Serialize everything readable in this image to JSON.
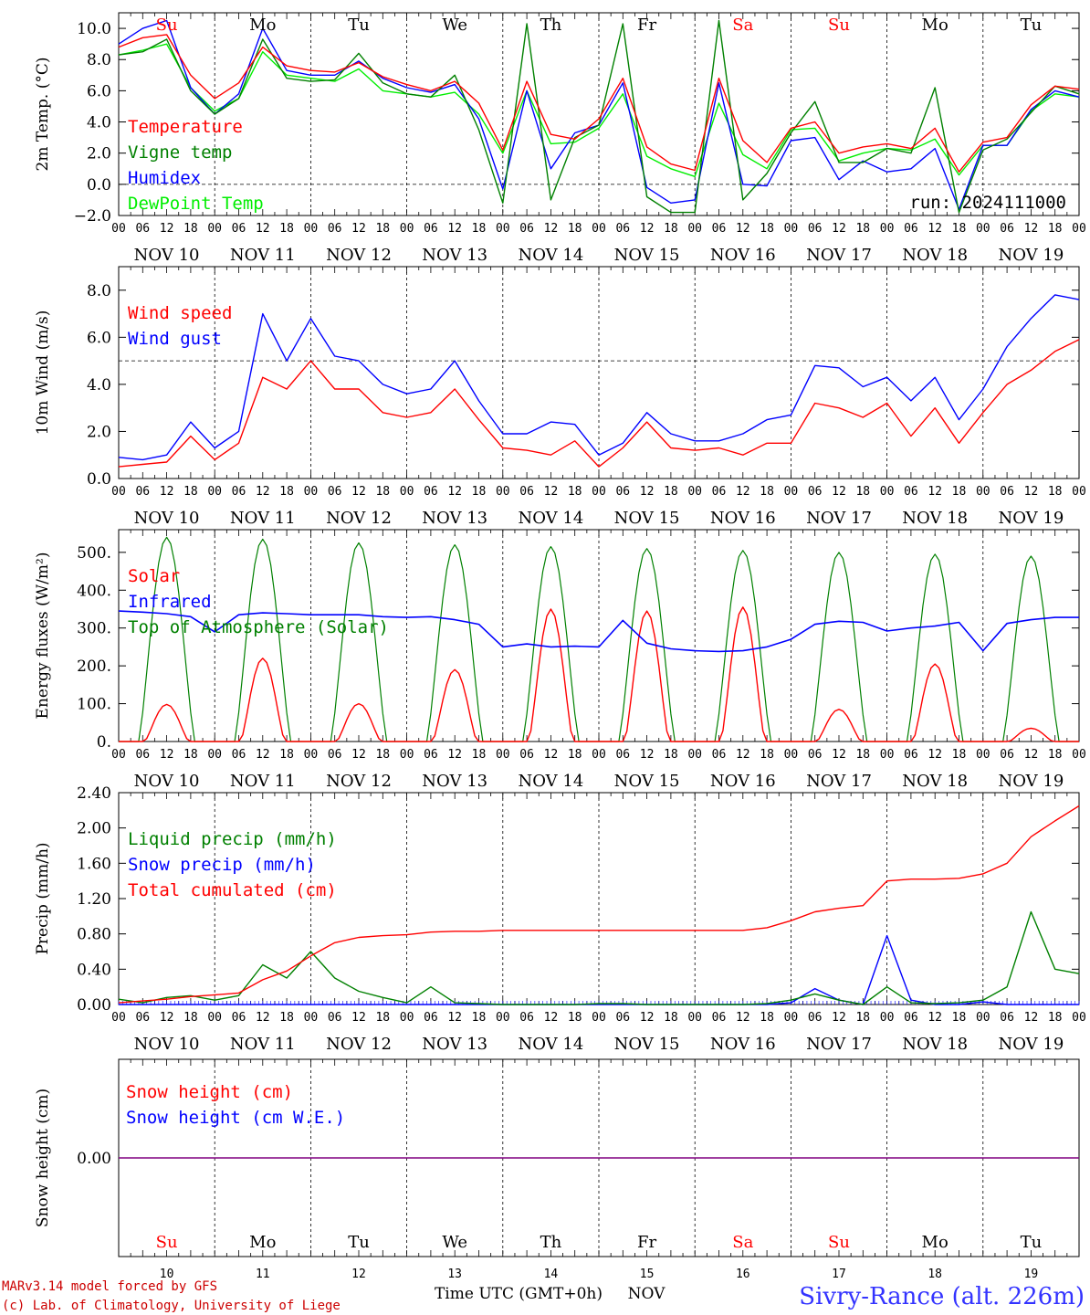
{
  "chart_data": [
    {
      "type": "line",
      "ylabel": "2m Temp. (°C)",
      "ylim": [
        -2,
        11
      ],
      "yticks": [
        "−2.0",
        "0.0",
        "2.0",
        "4.0",
        "6.0",
        "8.0",
        "10.0"
      ],
      "ytick_values": [
        -2,
        0,
        2,
        4,
        6,
        8,
        10
      ],
      "ref_line": 0,
      "run_label": "run: 2024111000",
      "legend": [
        {
          "name": "Temperature",
          "color": "#ff0000"
        },
        {
          "name": "Vigne temp",
          "color": "#008000"
        },
        {
          "name": "Humidex",
          "color": "#0000ff"
        },
        {
          "name": "DewPoint Temp",
          "color": "#00ee00"
        }
      ],
      "x_hours": [
        0,
        6,
        12,
        18,
        24,
        30,
        36,
        42,
        48,
        54,
        60,
        66,
        72,
        78,
        84,
        90,
        96,
        102,
        108,
        114,
        120,
        126,
        132,
        138,
        144,
        150,
        156,
        162,
        168,
        174,
        180,
        186,
        192,
        198,
        204,
        210,
        216,
        222,
        228,
        234,
        240
      ],
      "series": [
        {
          "name": "Temperature",
          "color": "#ff0000",
          "values": [
            8.8,
            9.4,
            9.6,
            7.0,
            5.5,
            6.5,
            8.8,
            7.6,
            7.3,
            7.2,
            7.8,
            6.9,
            6.4,
            6.0,
            6.6,
            5.2,
            2.2,
            6.6,
            3.2,
            2.9,
            4.2,
            6.8,
            2.4,
            1.3,
            0.9,
            6.8,
            2.8,
            1.4,
            3.6,
            4.0,
            2.0,
            2.4,
            2.6,
            2.3,
            3.6,
            0.8,
            2.7,
            3.0,
            5.1,
            6.3,
            6.1
          ]
        },
        {
          "name": "Vigne temp",
          "color": "#008000",
          "values": [
            8.3,
            8.5,
            9.3,
            6.0,
            4.5,
            5.5,
            9.3,
            6.8,
            6.6,
            6.7,
            8.4,
            6.5,
            5.8,
            5.6,
            7.0,
            3.5,
            -1.2,
            10.3,
            -1.0,
            3.0,
            3.8,
            10.3,
            -0.8,
            -1.8,
            -1.8,
            10.5,
            -1.0,
            0.7,
            3.3,
            5.3,
            1.4,
            1.4,
            2.3,
            2.0,
            6.2,
            -1.8,
            2.2,
            2.9,
            4.6,
            6.3,
            5.8
          ]
        },
        {
          "name": "Humidex",
          "color": "#0000ff",
          "values": [
            9.0,
            10.0,
            10.5,
            6.2,
            4.5,
            5.8,
            10.0,
            7.3,
            7.0,
            7.0,
            7.9,
            6.8,
            6.2,
            5.9,
            6.4,
            4.2,
            -0.3,
            6.0,
            1.0,
            3.3,
            3.8,
            6.5,
            -0.2,
            -1.2,
            -1.0,
            6.5,
            0.0,
            -0.1,
            2.8,
            3.0,
            0.3,
            1.5,
            0.8,
            1.0,
            2.3,
            -1.6,
            2.5,
            2.5,
            4.8,
            6.0,
            5.6
          ]
        },
        {
          "name": "DewPoint Temp",
          "color": "#00ee00",
          "values": [
            8.3,
            8.6,
            9.0,
            6.2,
            4.7,
            5.5,
            8.5,
            7.0,
            6.8,
            6.6,
            7.4,
            6.0,
            5.8,
            5.6,
            5.9,
            4.5,
            2.0,
            6.0,
            2.6,
            2.7,
            3.6,
            5.8,
            1.8,
            1.0,
            0.5,
            5.2,
            1.9,
            1.0,
            3.5,
            3.6,
            1.5,
            2.0,
            2.3,
            2.2,
            2.9,
            0.6,
            2.5,
            2.5,
            4.7,
            5.8,
            5.6
          ]
        }
      ]
    },
    {
      "type": "line",
      "ylabel": "10m Wind (m/s)",
      "ylim": [
        0,
        9
      ],
      "yticks": [
        "0.0",
        "2.0",
        "4.0",
        "6.0",
        "8.0"
      ],
      "ytick_values": [
        0,
        2,
        4,
        6,
        8
      ],
      "ref_line": 5,
      "legend": [
        {
          "name": "Wind speed",
          "color": "#ff0000"
        },
        {
          "name": "Wind gust",
          "color": "#0000ff"
        }
      ],
      "x_hours": [
        0,
        6,
        12,
        18,
        24,
        30,
        36,
        42,
        48,
        54,
        60,
        66,
        72,
        78,
        84,
        90,
        96,
        102,
        108,
        114,
        120,
        126,
        132,
        138,
        144,
        150,
        156,
        162,
        168,
        174,
        180,
        186,
        192,
        198,
        204,
        210,
        216,
        222,
        228,
        234,
        240
      ],
      "series": [
        {
          "name": "Wind speed",
          "color": "#ff0000",
          "values": [
            0.5,
            0.6,
            0.7,
            1.8,
            0.8,
            1.5,
            4.3,
            3.8,
            5.0,
            3.8,
            3.8,
            2.8,
            2.6,
            2.8,
            3.8,
            2.5,
            1.3,
            1.2,
            1.0,
            1.6,
            0.5,
            1.3,
            2.4,
            1.3,
            1.2,
            1.3,
            1.0,
            1.5,
            1.5,
            3.2,
            3.0,
            2.6,
            3.2,
            1.8,
            3.0,
            1.5,
            2.8,
            4.0,
            4.6,
            5.4,
            5.9
          ]
        },
        {
          "name": "Wind gust",
          "color": "#0000ff",
          "values": [
            0.9,
            0.8,
            1.0,
            2.4,
            1.3,
            2.0,
            7.0,
            5.0,
            6.8,
            5.2,
            5.0,
            4.0,
            3.6,
            3.8,
            5.0,
            3.3,
            1.9,
            1.9,
            2.4,
            2.3,
            1.0,
            1.5,
            2.8,
            1.9,
            1.6,
            1.6,
            1.9,
            2.5,
            2.7,
            4.8,
            4.7,
            3.9,
            4.3,
            3.3,
            4.3,
            2.5,
            3.8,
            5.6,
            6.8,
            7.8,
            7.6
          ]
        }
      ]
    },
    {
      "type": "line",
      "ylabel": "Energy fluxes (W/m²)",
      "ylim": [
        0,
        560
      ],
      "yticks": [
        "0.",
        "100.",
        "200.",
        "300.",
        "400.",
        "500."
      ],
      "ytick_values": [
        0,
        100,
        200,
        300,
        400,
        500
      ],
      "legend": [
        {
          "name": "Solar",
          "color": "#ff0000"
        },
        {
          "name": "Infrared",
          "color": "#0000ff"
        },
        {
          "name": "Top of Atmosphere (Solar)",
          "color": "#008000"
        }
      ],
      "infrared": {
        "x_hours": [
          0,
          6,
          12,
          18,
          24,
          30,
          36,
          42,
          48,
          54,
          60,
          66,
          72,
          78,
          84,
          90,
          96,
          102,
          108,
          114,
          120,
          126,
          132,
          138,
          144,
          150,
          156,
          162,
          168,
          174,
          180,
          186,
          192,
          198,
          204,
          210,
          216,
          222,
          228,
          234,
          240
        ],
        "values": [
          345,
          342,
          338,
          330,
          290,
          335,
          340,
          338,
          335,
          335,
          335,
          330,
          328,
          330,
          322,
          310,
          250,
          258,
          250,
          252,
          250,
          320,
          260,
          245,
          240,
          238,
          240,
          250,
          270,
          310,
          318,
          315,
          292,
          300,
          305,
          315,
          240,
          312,
          322,
          328,
          328
        ]
      },
      "solar_peaks": [
        98,
        220,
        100,
        190,
        350,
        345,
        355,
        85,
        205,
        35
      ],
      "toa_peaks": [
        540,
        535,
        525,
        520,
        515,
        510,
        505,
        500,
        495,
        490
      ]
    },
    {
      "type": "line",
      "ylabel": "Precip (mm/h)",
      "ylim": [
        0,
        2.4
      ],
      "yticks": [
        "0.00",
        "0.40",
        "0.80",
        "1.20",
        "1.60",
        "2.00",
        "2.40"
      ],
      "ytick_values": [
        0,
        0.4,
        0.8,
        1.2,
        1.6,
        2.0,
        2.4
      ],
      "legend": [
        {
          "name": "Liquid precip (mm/h)",
          "color": "#008000"
        },
        {
          "name": "Snow precip (mm/h)",
          "color": "#0000ff"
        },
        {
          "name": "Total cumulated (cm)",
          "color": "#ff0000"
        }
      ],
      "x_hours": [
        0,
        6,
        12,
        18,
        24,
        30,
        36,
        42,
        48,
        54,
        60,
        66,
        72,
        78,
        84,
        90,
        96,
        102,
        108,
        114,
        120,
        126,
        132,
        138,
        144,
        150,
        156,
        162,
        168,
        174,
        180,
        186,
        192,
        198,
        204,
        210,
        216,
        222,
        228,
        234,
        240
      ],
      "series": [
        {
          "name": "Total cumulated (cm)",
          "color": "#ff0000",
          "values": [
            0.02,
            0.04,
            0.06,
            0.09,
            0.11,
            0.13,
            0.28,
            0.38,
            0.55,
            0.7,
            0.76,
            0.78,
            0.79,
            0.82,
            0.83,
            0.83,
            0.84,
            0.84,
            0.84,
            0.84,
            0.84,
            0.84,
            0.84,
            0.84,
            0.84,
            0.84,
            0.84,
            0.87,
            0.95,
            1.05,
            1.09,
            1.12,
            1.4,
            1.42,
            1.42,
            1.43,
            1.48,
            1.6,
            1.9,
            2.08,
            2.25
          ]
        },
        {
          "name": "Liquid precip (mm/h)",
          "color": "#008000",
          "values": [
            0.06,
            0.02,
            0.08,
            0.1,
            0.05,
            0.1,
            0.45,
            0.3,
            0.6,
            0.3,
            0.15,
            0.08,
            0.02,
            0.2,
            0.02,
            0.01,
            0.0,
            0.0,
            0.0,
            0.0,
            0.01,
            0.01,
            0.0,
            0.0,
            0.0,
            0.0,
            0.0,
            0.01,
            0.05,
            0.12,
            0.05,
            0.0,
            0.2,
            0.02,
            0.01,
            0.02,
            0.05,
            0.2,
            1.05,
            0.4,
            0.35
          ]
        },
        {
          "name": "Snow precip (mm/h)",
          "color": "#0000ff",
          "values": [
            0,
            0,
            0,
            0,
            0,
            0,
            0,
            0,
            0,
            0,
            0,
            0,
            0,
            0,
            0,
            0,
            0,
            0,
            0,
            0,
            0,
            0,
            0,
            0,
            0,
            0,
            0,
            0,
            0.02,
            0.18,
            0.05,
            0,
            0.78,
            0.05,
            0,
            0,
            0.03,
            0,
            0,
            0,
            0
          ]
        }
      ]
    },
    {
      "type": "line",
      "ylabel": "Snow height (cm)",
      "ylim": [
        -1,
        1
      ],
      "yticks": [
        "0.00"
      ],
      "ytick_values": [
        0
      ],
      "legend": [
        {
          "name": "Snow height (cm)",
          "color": "#ff0000"
        },
        {
          "name": "Snow height (cm W.E.)",
          "color": "#0000ff"
        }
      ],
      "series": [
        {
          "name": "Snow height (cm)",
          "color": "#800080",
          "values": [
            0,
            0
          ]
        }
      ]
    }
  ],
  "weekdays": [
    {
      "label": "Su",
      "color": "#ff0000"
    },
    {
      "label": "Mo",
      "color": "#000000"
    },
    {
      "label": "Tu",
      "color": "#000000"
    },
    {
      "label": "We",
      "color": "#000000"
    },
    {
      "label": "Th",
      "color": "#000000"
    },
    {
      "label": "Fr",
      "color": "#000000"
    },
    {
      "label": "Sa",
      "color": "#ff0000"
    },
    {
      "label": "Su",
      "color": "#ff0000"
    },
    {
      "label": "Mo",
      "color": "#000000"
    },
    {
      "label": "Tu",
      "color": "#000000"
    }
  ],
  "dates": [
    "NOV 10",
    "NOV 11",
    "NOV 12",
    "NOV 13",
    "NOV 14",
    "NOV 15",
    "NOV 16",
    "NOV 17",
    "NOV 18",
    "NOV 19"
  ],
  "day_numbers": [
    "10",
    "11",
    "12",
    "13",
    "14",
    "15",
    "16",
    "17",
    "18",
    "19"
  ],
  "hour_ticks": [
    "00",
    "06",
    "12",
    "18"
  ],
  "hour_end": "00",
  "xlabel": "Time UTC (GMT+0h)",
  "month": "NOV",
  "footer_left": [
    "MARv3.14 model forced by GFS",
    "(c) Lab. of Climatology, University of Liege"
  ],
  "station": "Sivry-Rance (alt. 226m)"
}
